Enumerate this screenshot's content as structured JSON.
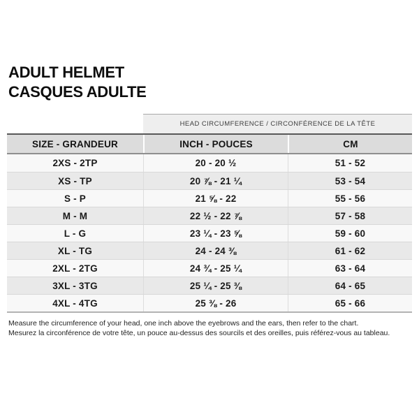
{
  "title": {
    "line1": "ADULT HELMET",
    "line2": "CASQUES ADULTE"
  },
  "table": {
    "span_header": "HEAD CIRCUMFERENCE / CIRCONFÉRENCE DE LA TÊTE",
    "columns": [
      "SIZE - GRANDEUR",
      "INCH - POUCES",
      "CM"
    ],
    "rows": [
      {
        "size": "2XS - 2TP",
        "inch": "20 - 20 ½",
        "cm": "51 - 52"
      },
      {
        "size": "XS - TP",
        "inch": "20 ⅞ - 21 ¼",
        "cm": "53 - 54"
      },
      {
        "size": "S - P",
        "inch": "21 ⅝ - 22",
        "cm": "55 - 56"
      },
      {
        "size": "M - M",
        "inch": "22 ½ - 22 ⅞",
        "cm": "57 - 58"
      },
      {
        "size": "L - G",
        "inch": "23 ¼ - 23 ⅝",
        "cm": "59 - 60"
      },
      {
        "size": "XL - TG",
        "inch": "24 - 24 ⅜",
        "cm": "61 - 62"
      },
      {
        "size": "2XL - 2TG",
        "inch": "24 ¾ - 25 ¼",
        "cm": "63 - 64"
      },
      {
        "size": "3XL - 3TG",
        "inch": "25 ¼ - 25 ⅜",
        "cm": "64 - 65"
      },
      {
        "size": "4XL - 4TG",
        "inch": "25 ⅜ - 26",
        "cm": "65 - 66"
      }
    ]
  },
  "footer": {
    "line1": "Measure the circumference of your head, one inch above the eyebrows and the ears, then refer to the chart.",
    "line2": "Mesurez la circonférence de votre tête, un pouce au-dessus des sourcils et des oreilles, puis référez-vous au tableau."
  },
  "colors": {
    "header_row_bg": "#dcdcdc",
    "banner_bg": "#eeeeee",
    "row_odd_bg": "#f8f8f8",
    "row_even_bg": "#e9e9e9",
    "text": "#1a1a1a"
  }
}
